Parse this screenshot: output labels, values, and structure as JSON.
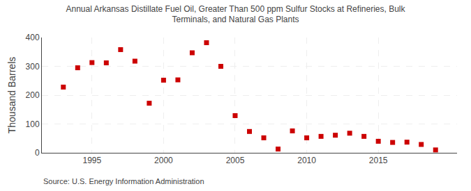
{
  "chart_data": {
    "type": "scatter",
    "title": "Annual Arkansas Distillate Fuel Oil, Greater Than 500 ppm Sulfur Stocks at Refineries, Bulk\nTerminals, and Natural Gas Plants",
    "ylabel": "Thousand Barrels",
    "annotations": [
      "Source: U.S. Energy Information Administration"
    ],
    "x": [
      1993,
      1994,
      1995,
      1996,
      1997,
      1998,
      1999,
      2000,
      2001,
      2002,
      2003,
      2004,
      2005,
      2006,
      2007,
      2008,
      2009,
      2010,
      2011,
      2012,
      2013,
      2014,
      2015,
      2016,
      2017,
      2018,
      2019
    ],
    "values": [
      228,
      295,
      313,
      312,
      358,
      318,
      172,
      252,
      253,
      347,
      382,
      300,
      129,
      74,
      52,
      13,
      76,
      52,
      57,
      61,
      68,
      57,
      40,
      36,
      37,
      29,
      10
    ],
    "color": "#cc0000",
    "marker": "square",
    "xlim": [
      1991.5,
      2020.5
    ],
    "xticks": [
      1995,
      2000,
      2005,
      2010,
      2015
    ],
    "ylim": [
      0,
      400
    ],
    "yticks": [
      0,
      100,
      200,
      300,
      400
    ],
    "grid": true
  }
}
